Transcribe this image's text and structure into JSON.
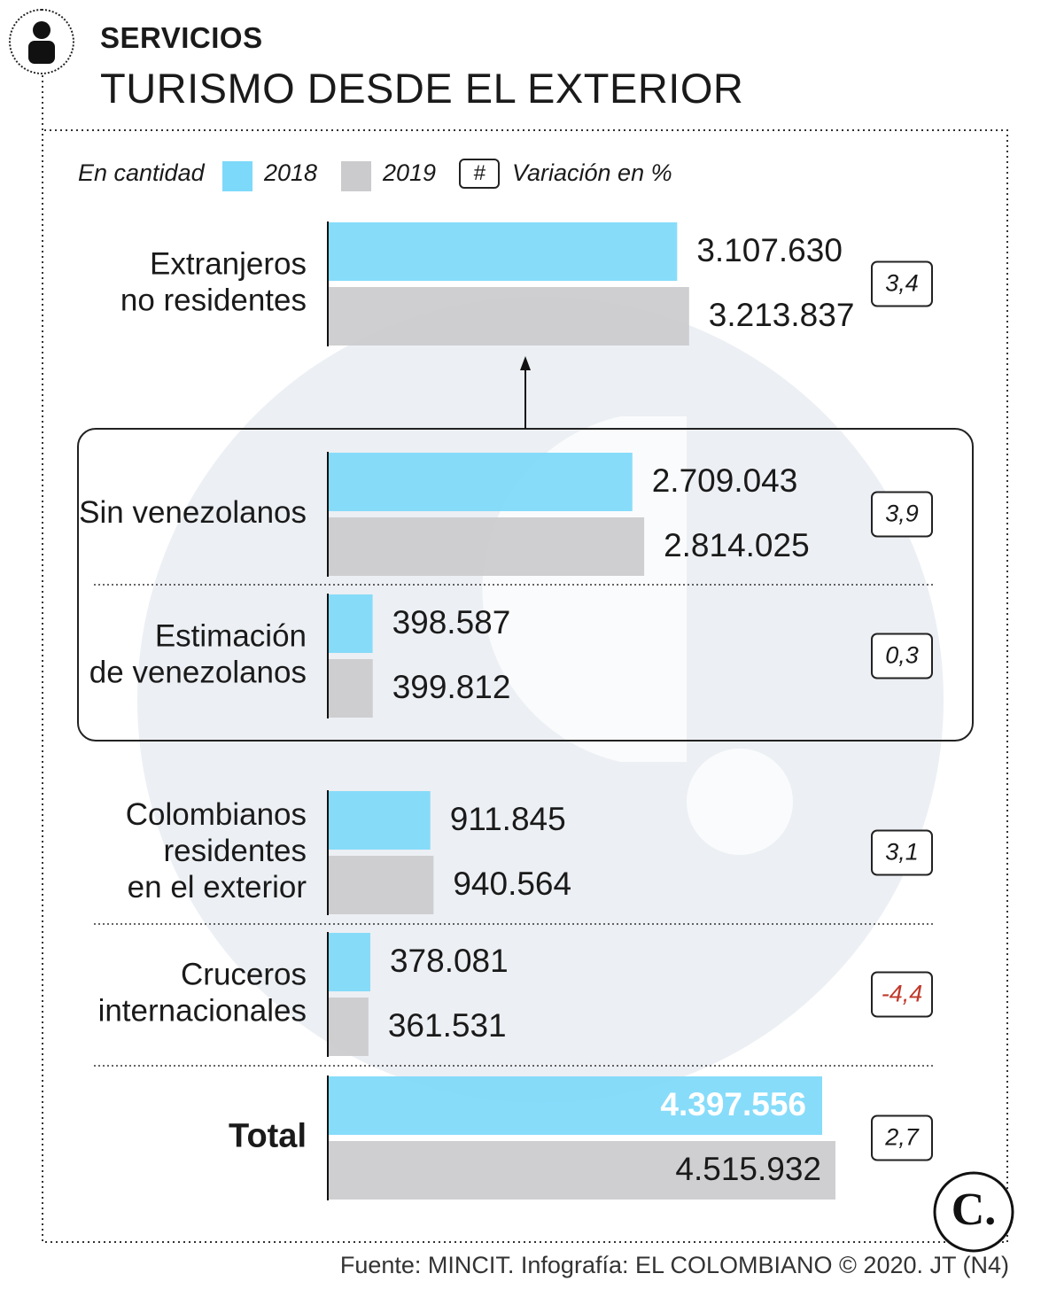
{
  "header": {
    "kicker": "SERVICIOS",
    "title": "TURISMO DESDE EL EXTERIOR",
    "icon": "person-icon"
  },
  "legend": {
    "unit": "En cantidad",
    "series_2018": "2018",
    "series_2019": "2019",
    "hash_symbol": "#",
    "variation": "Variación en %"
  },
  "colors": {
    "c2018": "#7dd9fa",
    "c2019": "#cbcbcd",
    "negative": "#c0392b",
    "ink": "#1a1a1a",
    "watermark": "#e9ecf1"
  },
  "chart_data": {
    "type": "bar",
    "orientation": "horizontal",
    "title": "TURISMO DESDE EL EXTERIOR",
    "xlabel": "En cantidad",
    "categories": [
      "Extranjeros no residentes",
      "Sin venezolanos",
      "Estimación de venezolanos",
      "Colombianos residentes en el exterior",
      "Cruceros internacionales",
      "Total"
    ],
    "series": [
      {
        "name": "2018",
        "values": [
          3107630,
          2709043,
          398587,
          911845,
          378081,
          4397556
        ]
      },
      {
        "name": "2019",
        "values": [
          3213837,
          2814025,
          399812,
          940564,
          361531,
          4515932
        ]
      }
    ],
    "variation_pct": [
      "3,4",
      "3,9",
      "0,3",
      "3,1",
      "-4,4",
      "2,7"
    ],
    "xlim": [
      0,
      4600000
    ],
    "rows": [
      {
        "label": [
          "Extranjeros",
          "no residentes"
        ],
        "v2018": 3107630,
        "v2019": 3213837,
        "l2018": "3.107.630",
        "l2019": "3.213.837",
        "variation": "3,4",
        "bold": false
      },
      {
        "label": [
          "Sin venezolanos"
        ],
        "v2018": 2709043,
        "v2019": 2814025,
        "l2018": "2.709.043",
        "l2019": "2.814.025",
        "variation": "3,9",
        "bold": false
      },
      {
        "label": [
          "Estimación",
          "de venezolanos"
        ],
        "v2018": 398587,
        "v2019": 399812,
        "l2018": "398.587",
        "l2019": "399.812",
        "variation": "0,3",
        "bold": false
      },
      {
        "label": [
          "Colombianos",
          "residentes",
          "en el exterior"
        ],
        "v2018": 911845,
        "v2019": 940564,
        "l2018": "911.845",
        "l2019": "940.564",
        "variation": "3,1",
        "bold": false
      },
      {
        "label": [
          "Cruceros",
          "internacionales"
        ],
        "v2018": 378081,
        "v2019": 361531,
        "l2018": "378.081",
        "l2019": "361.531",
        "variation": "-4,4",
        "bold": false
      },
      {
        "label": [
          "Total"
        ],
        "v2018": 4397556,
        "v2019": 4515932,
        "l2018": "4.397.556",
        "l2019": "4.515.932",
        "variation": "2,7",
        "bold": true
      }
    ]
  },
  "footer": {
    "source": "Fuente: MINCIT. Infografía: EL COLOMBIANO © 2020. JT (N4)",
    "logo_letter": "C."
  }
}
